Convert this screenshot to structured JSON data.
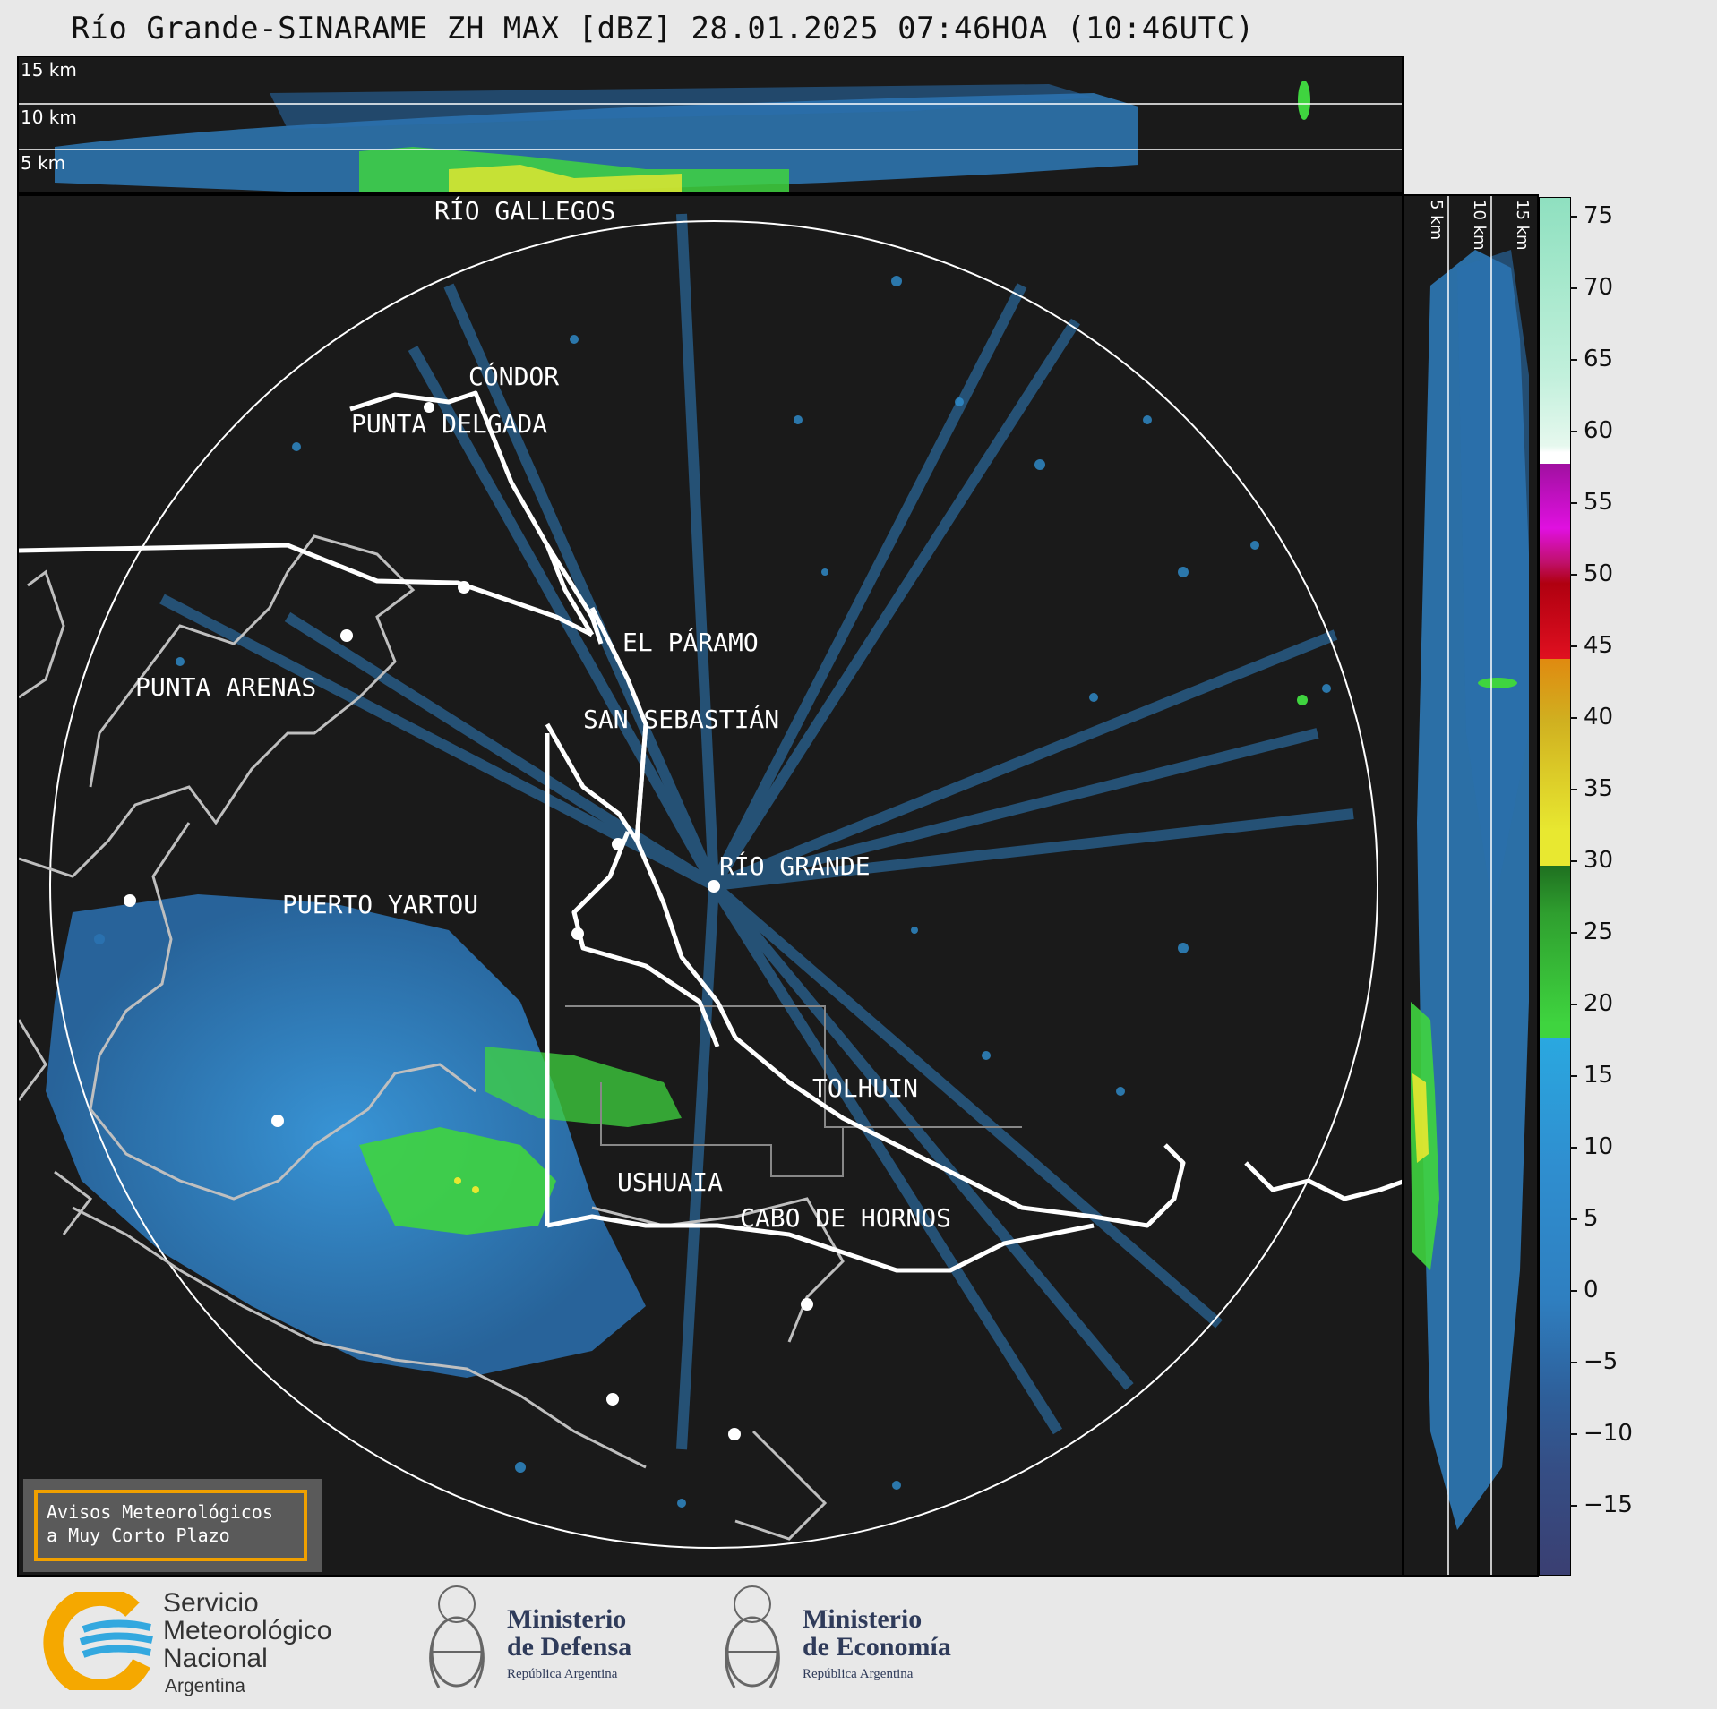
{
  "header": {
    "title": "Río Grande-SINARAME ZH MAX [dBZ] 28.01.2025 07:46HOA (10:46UTC)"
  },
  "top_panel": {
    "labels": [
      "15 km",
      "10 km",
      "5 km"
    ]
  },
  "side_panel": {
    "labels": [
      "5 km",
      "10 km",
      "15 km"
    ]
  },
  "map": {
    "places": [
      {
        "name": "RÍO GALLEGOS"
      },
      {
        "name": "CÓNDOR"
      },
      {
        "name": "PUNTA DELGADA"
      },
      {
        "name": "EL PÁRAMO"
      },
      {
        "name": "SAN SEBASTIÁN"
      },
      {
        "name": "PUNTA ARENAS"
      },
      {
        "name": "RÍO GRANDE"
      },
      {
        "name": "PUERTO YARTOU"
      },
      {
        "name": "TOLHUIN"
      },
      {
        "name": "USHUAIA"
      },
      {
        "name": "CABO DE HORNOS"
      }
    ],
    "range_ring": true
  },
  "colorbar": {
    "unit": "dBZ",
    "ticks": [
      "75",
      "70",
      "65",
      "60",
      "55",
      "50",
      "45",
      "40",
      "35",
      "30",
      "25",
      "20",
      "15",
      "10",
      "5",
      "0",
      "−5",
      "−10",
      "−15"
    ],
    "range": [
      -20,
      77
    ],
    "colors": {
      "low": "#3a3f72",
      "mid_blue": "#2f8fd0",
      "green": "#3fd43f",
      "yellow": "#e8e830",
      "orange": "#e08a10",
      "red": "#e01020",
      "magenta": "#e010e0",
      "white": "#ffffff",
      "mint": "#8fe0c0"
    }
  },
  "warning_box": {
    "line1": "Avisos Meteorológicos",
    "line2": "a Muy Corto Plazo"
  },
  "footer": {
    "smn": {
      "line1": "Servicio",
      "line2": "Meteorológico",
      "line3": "Nacional",
      "line4": "Argentina"
    },
    "defensa": {
      "line1": "Ministerio",
      "line2": "de Defensa",
      "line3": "República Argentina"
    },
    "economia": {
      "line1": "Ministerio",
      "line2": "de Economía",
      "line3": "República Argentina"
    }
  }
}
